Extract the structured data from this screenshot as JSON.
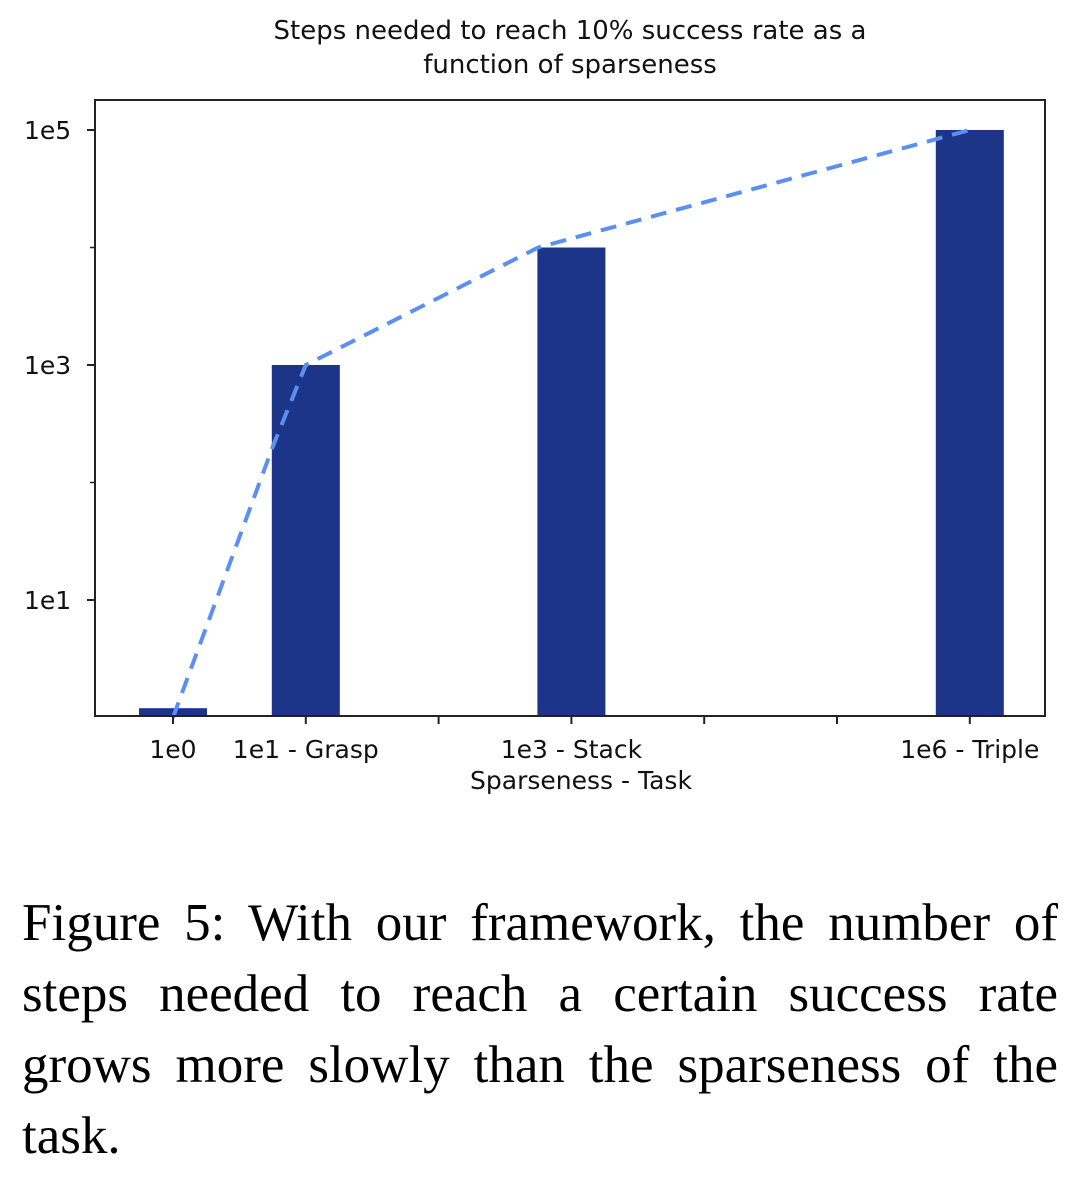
{
  "chart_data": {
    "type": "bar",
    "title_line1": "Steps needed to reach 10% success rate as a",
    "title_line2": "function of sparseness",
    "xlabel": "Sparseness - Task",
    "ylabel": "",
    "y_scale": "log",
    "ylim": [
      1,
      200000
    ],
    "y_ticks": [
      {
        "value": 10,
        "label": "1e1"
      },
      {
        "value": 1000,
        "label": "1e3"
      },
      {
        "value": 100000,
        "label": "1e5"
      }
    ],
    "x_positions": [
      0,
      1,
      2,
      3,
      4,
      5,
      6
    ],
    "x_ticks": [
      {
        "x": 0,
        "label": "1e0"
      },
      {
        "x": 1,
        "label": "1e1 - Grasp"
      },
      {
        "x": 3,
        "label": "1e3 - Stack"
      },
      {
        "x": 6,
        "label": "1e6 - Triple"
      }
    ],
    "bars": [
      {
        "x": 0,
        "value": 1.2,
        "label": "1e0"
      },
      {
        "x": 1,
        "value": 1000,
        "label": "1e1 - Grasp"
      },
      {
        "x": 3,
        "value": 10000,
        "label": "1e3 - Stack"
      },
      {
        "x": 6,
        "value": 100000,
        "label": "1e6 - Triple"
      }
    ],
    "trend_line": {
      "style": "dashed",
      "points": [
        {
          "x": 0,
          "y": 1
        },
        {
          "x": 0.75,
          "y": 200
        },
        {
          "x": 1,
          "y": 1000
        },
        {
          "x": 2.75,
          "y": 10000
        },
        {
          "x": 6,
          "y": 100000
        }
      ]
    },
    "colors": {
      "bar": "#1c3589",
      "trend": "#5b8ff0",
      "axis": "#222222"
    },
    "grid": false,
    "legend": "none"
  },
  "caption": "Figure 5: With our framework, the number of steps needed to reach a certain success rate grows more slowly than the sparseness of the task."
}
